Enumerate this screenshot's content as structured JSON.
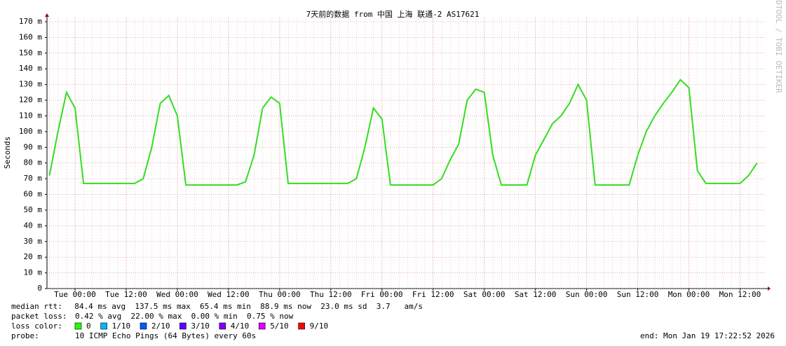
{
  "chart_data": {
    "type": "line",
    "title": "7天前的数据 from 中国 上海 联通-2 AS17621",
    "y_label": "Seconds",
    "watermark": "RRDTOOL / TOBI OETIKER",
    "categories": [
      null,
      null,
      null,
      "Tue 00:00",
      null,
      null,
      null,
      null,
      null,
      "Tue 12:00",
      null,
      null,
      null,
      null,
      null,
      "Wed 00:00",
      null,
      null,
      null,
      null,
      null,
      "Wed 12:00",
      null,
      null,
      null,
      null,
      null,
      "Thu 00:00",
      null,
      null,
      null,
      null,
      null,
      "Thu 12:00",
      null,
      null,
      null,
      null,
      null,
      "Fri 00:00",
      null,
      null,
      null,
      null,
      null,
      "Fri 12:00",
      null,
      null,
      null,
      null,
      null,
      "Sat 00:00",
      null,
      null,
      null,
      null,
      null,
      "Sat 12:00",
      null,
      null,
      null,
      null,
      null,
      "Sun 00:00",
      null,
      null,
      null,
      null,
      null,
      "Sun 12:00",
      null,
      null,
      null,
      null,
      null,
      "Mon 00:00",
      null,
      null,
      null,
      null,
      null,
      "Mon 12:00",
      null,
      null
    ],
    "series": [
      {
        "name": "0",
        "color": "#33dd22",
        "values": [
          0.072,
          0.1,
          0.125,
          0.115,
          0.067,
          0.067,
          0.067,
          0.067,
          0.067,
          0.067,
          0.067,
          0.07,
          0.09,
          0.118,
          0.123,
          0.11,
          0.066,
          0.066,
          0.066,
          0.066,
          0.066,
          0.066,
          0.066,
          0.068,
          0.085,
          0.115,
          0.122,
          0.118,
          0.067,
          0.067,
          0.067,
          0.067,
          0.067,
          0.067,
          0.067,
          0.067,
          0.07,
          0.09,
          0.115,
          0.108,
          0.066,
          0.066,
          0.066,
          0.066,
          0.066,
          0.066,
          0.07,
          0.082,
          0.092,
          0.12,
          0.127,
          0.125,
          0.085,
          0.066,
          0.066,
          0.066,
          0.066,
          0.085,
          0.095,
          0.105,
          0.11,
          0.118,
          0.13,
          0.12,
          0.066,
          0.066,
          0.066,
          0.066,
          0.066,
          0.085,
          0.1,
          0.11,
          0.118,
          0.125,
          0.133,
          0.128,
          0.075,
          0.067,
          0.067,
          0.067,
          0.067,
          0.067,
          0.072,
          0.08
        ]
      }
    ],
    "ylim": [
      0,
      0.1725
    ],
    "yticks": [
      0,
      {
        "value": 0.01,
        "label": "10 m"
      },
      {
        "value": 0.02,
        "label": "20 m"
      },
      {
        "value": 0.03,
        "label": "30 m"
      },
      {
        "value": 0.04,
        "label": "40 m"
      },
      {
        "value": 0.05,
        "label": "50 m"
      },
      {
        "value": 0.06,
        "label": "60 m"
      },
      {
        "value": 0.07,
        "label": "70 m"
      },
      {
        "value": 0.08,
        "label": "80 m"
      },
      {
        "value": 0.09,
        "label": "90 m"
      },
      {
        "value": 0.1,
        "label": "100 m"
      },
      {
        "value": 0.11,
        "label": "110 m"
      },
      {
        "value": 0.12,
        "label": "120 m"
      },
      {
        "value": 0.13,
        "label": "130 m"
      },
      {
        "value": 0.14,
        "label": "140 m"
      },
      {
        "value": 0.15,
        "label": "150 m"
      },
      {
        "value": 0.16,
        "label": "160 m"
      },
      {
        "value": 0.17,
        "label": "170 m"
      }
    ],
    "grid": true,
    "stats": [
      {
        "label": "median rtt:",
        "text": "  84.4 ms avg  137.5 ms max  65.4 ms min  88.9 ms now  23.0 ms sd  3.7   am/s"
      },
      {
        "label": "packet loss:",
        "text": "0.42 % avg  22.00 % max  0.00 % min  0.75 % now"
      }
    ],
    "loss_label": "loss color:",
    "loss_colors": [
      {
        "color": "#26ff00",
        "label": "0"
      },
      {
        "color": "#00b8ff",
        "label": "1/10"
      },
      {
        "color": "#0059ff",
        "label": "2/10"
      },
      {
        "color": "#5e00ff",
        "label": "3/10"
      },
      {
        "color": "#7e00ff",
        "label": "4/10"
      },
      {
        "color": "#dd00ff",
        "label": "5/10"
      },
      {
        "color": "#ff0000",
        "label": "9/10"
      }
    ],
    "probe_label": "probe:",
    "probe": "10 ICMP Echo Pings (64 Bytes) every 60s",
    "end": "end: Mon Jan 19 17:22:52 2026"
  }
}
